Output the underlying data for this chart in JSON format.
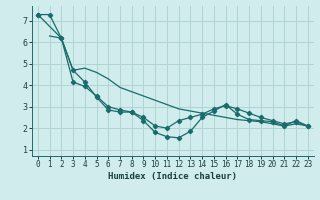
{
  "xlabel": "Humidex (Indice chaleur)",
  "background_color": "#d0ecec",
  "grid_color": "#b0d4d4",
  "line_color": "#1a6b6b",
  "xlim": [
    -0.5,
    23.5
  ],
  "ylim": [
    0.7,
    7.7
  ],
  "yticks": [
    1,
    2,
    3,
    4,
    5,
    6,
    7
  ],
  "xticks": [
    0,
    1,
    2,
    3,
    4,
    5,
    6,
    7,
    8,
    9,
    10,
    11,
    12,
    13,
    14,
    15,
    16,
    17,
    18,
    19,
    20,
    21,
    22,
    23
  ],
  "line1_x": [
    0,
    1,
    2,
    3,
    4,
    5,
    6,
    7,
    8,
    9,
    10,
    11,
    12,
    13,
    14,
    15,
    16,
    17,
    18,
    19,
    20,
    21,
    22,
    23
  ],
  "line1_y": [
    7.3,
    7.3,
    6.2,
    4.7,
    4.15,
    3.45,
    2.85,
    2.75,
    2.75,
    2.35,
    1.8,
    1.6,
    1.55,
    1.85,
    2.5,
    2.8,
    3.1,
    2.65,
    2.4,
    2.35,
    2.3,
    2.1,
    2.35,
    2.1
  ],
  "line2_x": [
    0,
    2,
    3,
    4,
    5,
    6,
    7,
    8,
    9,
    10,
    11,
    12,
    13,
    14,
    15,
    16,
    17,
    18,
    19,
    20,
    21,
    22,
    23
  ],
  "line2_y": [
    7.3,
    6.2,
    4.15,
    3.95,
    3.5,
    3.0,
    2.85,
    2.75,
    2.5,
    2.1,
    2.0,
    2.35,
    2.5,
    2.65,
    2.9,
    3.05,
    2.9,
    2.7,
    2.5,
    2.35,
    2.2,
    2.3,
    2.1
  ],
  "line3_x": [
    1,
    2,
    3,
    4,
    5,
    6,
    7,
    8,
    9,
    10,
    11,
    12,
    13,
    14,
    15,
    16,
    17,
    18,
    19,
    20,
    21,
    22,
    23
  ],
  "line3_y": [
    6.3,
    6.2,
    4.7,
    4.8,
    4.6,
    4.3,
    3.9,
    3.7,
    3.5,
    3.3,
    3.1,
    2.9,
    2.8,
    2.7,
    2.6,
    2.5,
    2.4,
    2.35,
    2.3,
    2.2,
    2.1,
    2.2,
    2.1
  ]
}
